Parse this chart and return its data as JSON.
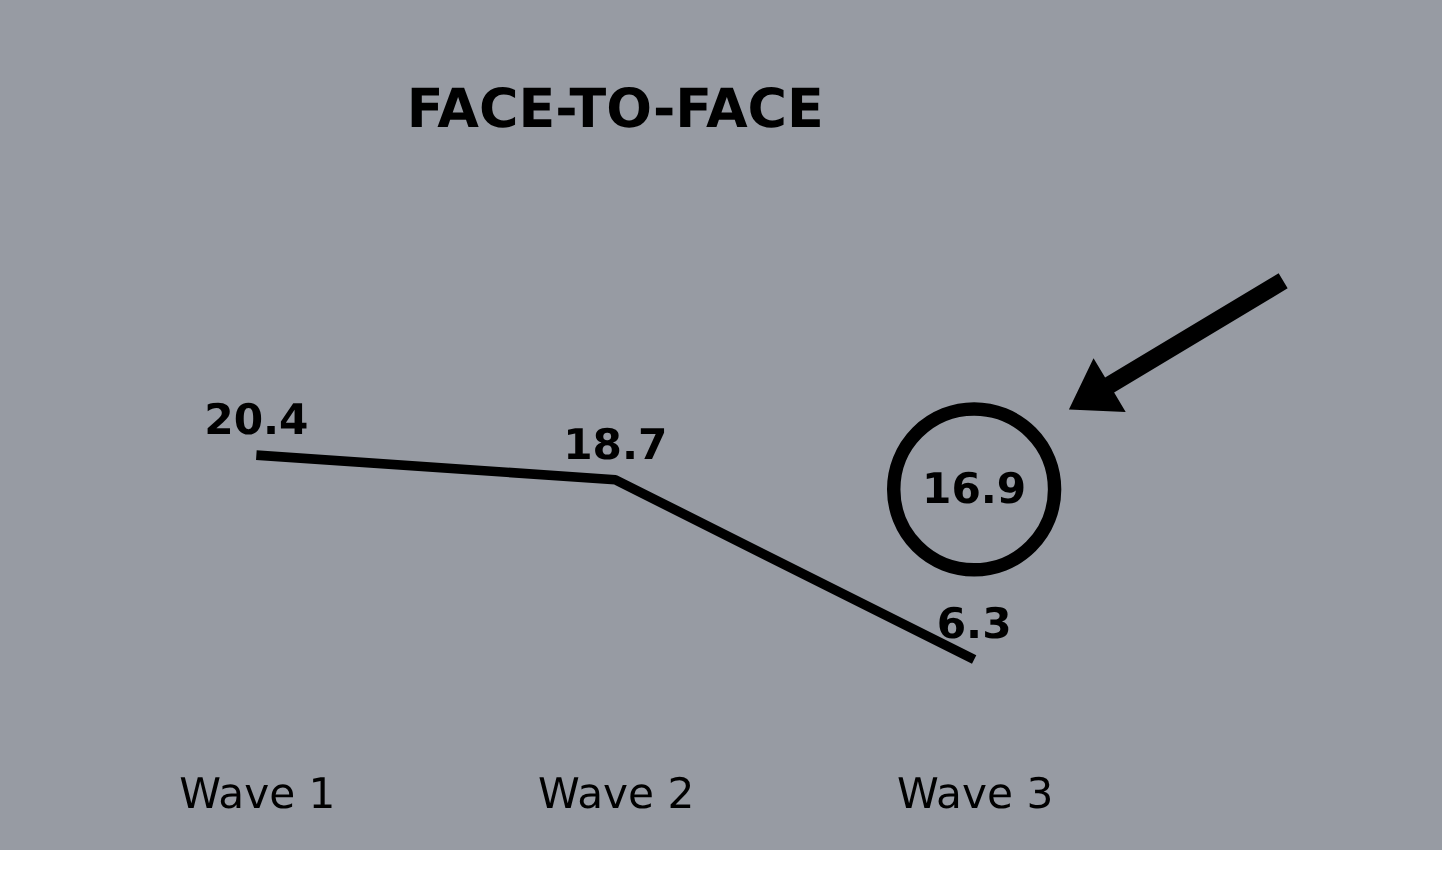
{
  "chart_data": {
    "type": "line",
    "title": "FACE-TO-FACE",
    "categories": [
      "Wave 1",
      "Wave 2",
      "Wave 3"
    ],
    "series": [
      {
        "color": "#000000",
        "values": [
          20.4,
          18.7,
          6.3
        ]
      }
    ],
    "data_labels": true,
    "legend": false,
    "marker": "none",
    "line_style": "solid",
    "annotations": [
      "16.9"
    ]
  }
}
